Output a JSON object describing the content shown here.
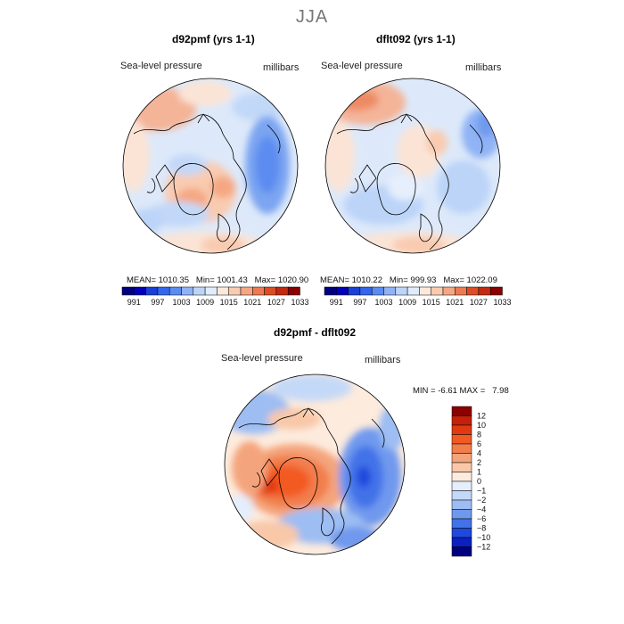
{
  "season": "JJA",
  "panels": [
    {
      "title": "d92pmf (yrs 1-1)",
      "left_label": "Sea-level pressure",
      "right_label": "millibars",
      "stats": {
        "mean_label": "MEAN=",
        "mean": "1010.35",
        "min_label": "Min=",
        "min": "1001.43",
        "max_label": "Max=",
        "max": "1020.90"
      }
    },
    {
      "title": "dflt092 (yrs 1-1)",
      "left_label": "Sea-level pressure",
      "right_label": "millibars",
      "stats": {
        "mean_label": "MEAN=",
        "mean": "1010.22",
        "min_label": "Min=",
        "min": "999.93",
        "max_label": "Max=",
        "max": "1022.09"
      }
    }
  ],
  "abs_colorbar": {
    "colors": [
      "#00007f",
      "#0000b8",
      "#1a3fd9",
      "#3366ee",
      "#5b8cf0",
      "#8fb3f5",
      "#bcd4f8",
      "#e0ecfb",
      "#fde8dc",
      "#f9cbb0",
      "#f5a783",
      "#ee7a52",
      "#dd4c24",
      "#c22a10",
      "#8b0000"
    ],
    "labels": [
      "991",
      "997",
      "1003",
      "1009",
      "1015",
      "1021",
      "1027",
      "1033"
    ]
  },
  "diff_panel": {
    "title": "d92pmf - dflt092",
    "left_label": "Sea-level pressure",
    "right_label": "millibars",
    "min_label": "MIN =",
    "min": "-6.61",
    "max_label": "MAX =",
    "max": "7.98"
  },
  "diff_colorbar": {
    "colors": [
      "#8b0000",
      "#c4200a",
      "#e23a10",
      "#f25a23",
      "#f27e4c",
      "#f4a47b",
      "#f8c8a9",
      "#fdebdd",
      "#e4eefc",
      "#c4d9f8",
      "#9dbdf3",
      "#6f99ee",
      "#4272e8",
      "#1f48dd",
      "#0a20c0",
      "#00007f"
    ],
    "labels": [
      "12",
      "10",
      "8",
      "6",
      "4",
      "2",
      "1",
      "0",
      "-1",
      "-2",
      "-4",
      "-6",
      "-8",
      "-10",
      "-12"
    ]
  },
  "colors": {
    "title": "#777777",
    "map_bg": "#e2edfb",
    "coast": "#000000"
  }
}
